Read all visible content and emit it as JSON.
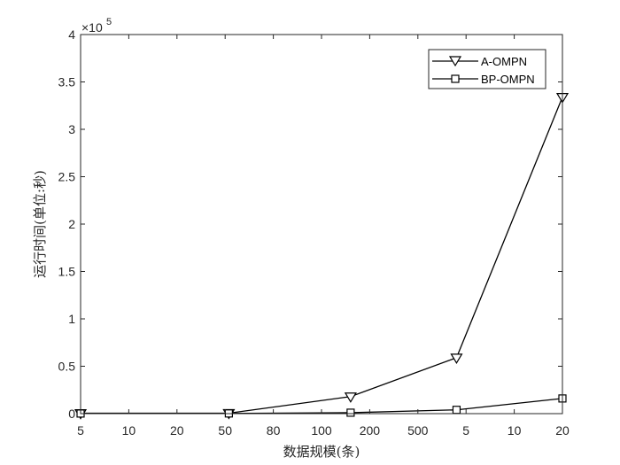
{
  "chart_data": {
    "type": "line",
    "xlabel": "数据规模(条)",
    "ylabel": "运行时间(单位:秒)",
    "x_tick_labels": [
      "5",
      "10",
      "20",
      "50",
      "80",
      "100",
      "200",
      "500",
      "5",
      "10",
      "20"
    ],
    "x_marker_positions": [
      1,
      3.8,
      6.1,
      8.1,
      10.1
    ],
    "x_range": [
      1,
      10.1
    ],
    "y_ticks": [
      0,
      0.5,
      1,
      1.5,
      2,
      2.5,
      3,
      3.5,
      4
    ],
    "y_tick_labels": [
      "0",
      "0.5",
      "1",
      "1.5",
      "2",
      "2.5",
      "3",
      "3.5",
      "4"
    ],
    "y_exponent_base": "×10",
    "y_exponent_power": "5",
    "ylim": [
      0,
      4
    ],
    "grid": false,
    "legend_position": "top-right",
    "series": [
      {
        "name": "A-OMPN",
        "marker": "triangle-down",
        "values": [
          0.004,
          0.005,
          0.18,
          0.59,
          3.34
        ]
      },
      {
        "name": "BP-OMPN",
        "marker": "square",
        "values": [
          0.001,
          0.002,
          0.01,
          0.04,
          0.16
        ]
      }
    ],
    "colors": {
      "line": "#000000",
      "axis": "#262626",
      "background": "#ffffff"
    }
  }
}
